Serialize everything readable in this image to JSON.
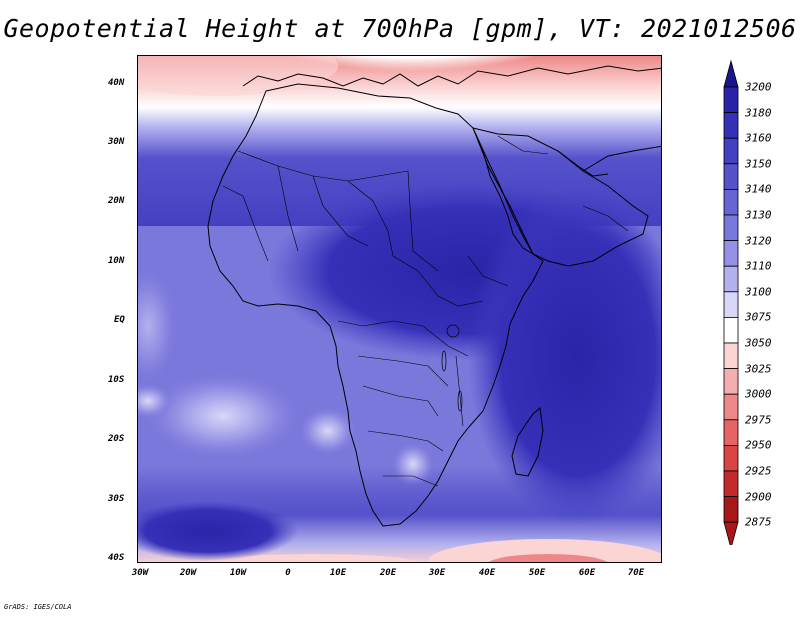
{
  "title": "Geopotential Height at 700hPa [gpm], VT: 2021012506",
  "credit": "GrADS: IGES/COLA",
  "lat_labels": [
    "40N",
    "30N",
    "20N",
    "10N",
    "EQ",
    "10S",
    "20S",
    "30S",
    "40S"
  ],
  "lon_labels": [
    "30W",
    "20W",
    "10W",
    "0",
    "10E",
    "20E",
    "30E",
    "40E",
    "50E",
    "60E",
    "70E"
  ],
  "map": {
    "lon_range": [
      -30,
      75
    ],
    "lat_range": [
      -40,
      45
    ]
  },
  "colorbar": {
    "levels": [
      "3200",
      "3180",
      "3160",
      "3150",
      "3140",
      "3130",
      "3120",
      "3110",
      "3100",
      "3075",
      "3050",
      "3025",
      "3000",
      "2975",
      "2950",
      "2925",
      "2900",
      "2875"
    ],
    "colors": [
      "#1a1490",
      "#2a24a8",
      "#3630b8",
      "#4440c2",
      "#5552cb",
      "#6764d4",
      "#7b78dc",
      "#9390e5",
      "#b3b1ee",
      "#d8d7f7",
      "#ffffff",
      "#fbd4d4",
      "#f5aeae",
      "#ee8888",
      "#e56464",
      "#d94444",
      "#c42a2a",
      "#a81818"
    ]
  },
  "colors": {
    "sea_background": "#7b78dc",
    "land_fill": "#4440c2",
    "outline": "#000000"
  }
}
